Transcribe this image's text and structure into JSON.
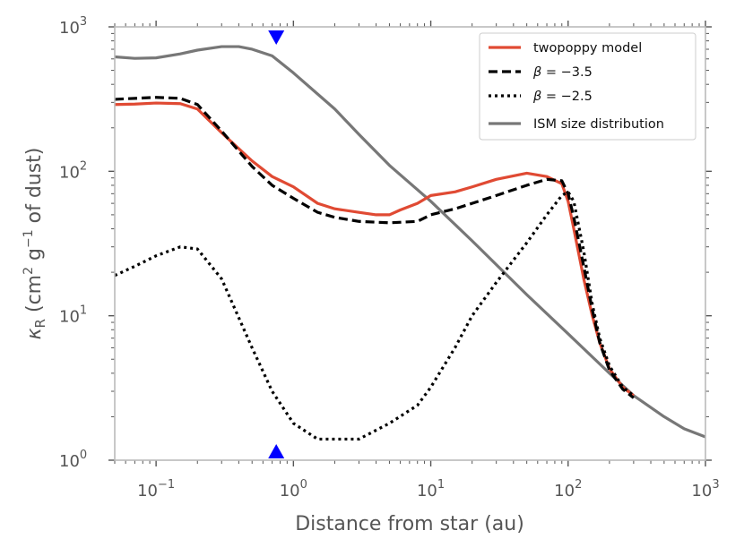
{
  "chart_data": {
    "type": "line",
    "x_scale": "log",
    "y_scale": "log",
    "xlim": [
      0.05,
      1000
    ],
    "ylim": [
      1,
      1000
    ],
    "xlabel": "Distance from star (au)",
    "ylabel": "κR (cm² g⁻¹ of dust)",
    "ylabel_parts": {
      "symbol": "κ",
      "sub": "R",
      "open": " (cm",
      "sup1": "2",
      "mid": " g",
      "sup2": "−1",
      "close": " of dust)"
    },
    "x_ticks": [
      {
        "value": 0.1,
        "base": "10",
        "exp": "−1"
      },
      {
        "value": 1,
        "base": "10",
        "exp": "0"
      },
      {
        "value": 10,
        "base": "10",
        "exp": "1"
      },
      {
        "value": 100,
        "base": "10",
        "exp": "2"
      },
      {
        "value": 1000,
        "base": "10",
        "exp": "3"
      }
    ],
    "y_ticks": [
      {
        "value": 1,
        "base": "10",
        "exp": "0"
      },
      {
        "value": 10,
        "base": "10",
        "exp": "1"
      },
      {
        "value": 100,
        "base": "10",
        "exp": "2"
      },
      {
        "value": 1000,
        "base": "10",
        "exp": "3"
      }
    ],
    "markers": [
      {
        "name": "marker-top",
        "x": 0.75,
        "position": "top",
        "shape": "triangle-down",
        "color": "#0000ff"
      },
      {
        "name": "marker-bottom",
        "x": 0.75,
        "position": "bottom",
        "shape": "triangle-up",
        "color": "#0000ff"
      }
    ],
    "legend_position": "top-right",
    "series": [
      {
        "name": "twopoppy model",
        "label": "twopoppy model",
        "color": "#e04a33",
        "dash": "solid",
        "points": [
          [
            0.05,
            290
          ],
          [
            0.07,
            292
          ],
          [
            0.1,
            297
          ],
          [
            0.15,
            294
          ],
          [
            0.2,
            270
          ],
          [
            0.3,
            185
          ],
          [
            0.5,
            118
          ],
          [
            0.7,
            92
          ],
          [
            1,
            78
          ],
          [
            1.5,
            60
          ],
          [
            2,
            55
          ],
          [
            3,
            52
          ],
          [
            4,
            50
          ],
          [
            5,
            50
          ],
          [
            6,
            54
          ],
          [
            8,
            60
          ],
          [
            10,
            68
          ],
          [
            15,
            72
          ],
          [
            20,
            78
          ],
          [
            30,
            88
          ],
          [
            50,
            97
          ],
          [
            70,
            92
          ],
          [
            90,
            82
          ],
          [
            100,
            62
          ],
          [
            110,
            40
          ],
          [
            130,
            18
          ],
          [
            150,
            10
          ],
          [
            170,
            6.5
          ],
          [
            200,
            4.3
          ],
          [
            250,
            3.2
          ],
          [
            300,
            2.8
          ]
        ]
      },
      {
        "name": "beta-minus-3.5",
        "label": "β = −3.5",
        "label_parts": {
          "symbol": "β",
          "rest": " = −3.5"
        },
        "color": "#000000",
        "dash": "dashed",
        "points": [
          [
            0.05,
            315
          ],
          [
            0.07,
            320
          ],
          [
            0.1,
            325
          ],
          [
            0.15,
            320
          ],
          [
            0.2,
            290
          ],
          [
            0.3,
            190
          ],
          [
            0.5,
            108
          ],
          [
            0.7,
            80
          ],
          [
            1,
            65
          ],
          [
            1.5,
            52
          ],
          [
            2,
            48
          ],
          [
            3,
            45
          ],
          [
            5,
            44
          ],
          [
            8,
            45
          ],
          [
            10,
            50
          ],
          [
            15,
            55
          ],
          [
            20,
            60
          ],
          [
            30,
            68
          ],
          [
            50,
            80
          ],
          [
            70,
            88
          ],
          [
            90,
            86
          ],
          [
            100,
            70
          ],
          [
            110,
            48
          ],
          [
            130,
            22
          ],
          [
            150,
            11
          ],
          [
            170,
            6.5
          ],
          [
            200,
            4.2
          ],
          [
            250,
            3.1
          ],
          [
            300,
            2.7
          ]
        ]
      },
      {
        "name": "beta-minus-2.5",
        "label": "β = −2.5",
        "label_parts": {
          "symbol": "β",
          "rest": " = −2.5"
        },
        "color": "#000000",
        "dash": "dotted",
        "points": [
          [
            0.05,
            19
          ],
          [
            0.07,
            22
          ],
          [
            0.1,
            26
          ],
          [
            0.15,
            30
          ],
          [
            0.2,
            29
          ],
          [
            0.3,
            18
          ],
          [
            0.5,
            6
          ],
          [
            0.7,
            3
          ],
          [
            1,
            1.8
          ],
          [
            1.5,
            1.4
          ],
          [
            2,
            1.4
          ],
          [
            3,
            1.4
          ],
          [
            5,
            1.8
          ],
          [
            8,
            2.4
          ],
          [
            10,
            3.2
          ],
          [
            15,
            6
          ],
          [
            20,
            10
          ],
          [
            30,
            17
          ],
          [
            50,
            32
          ],
          [
            70,
            50
          ],
          [
            90,
            68
          ],
          [
            100,
            72
          ],
          [
            110,
            62
          ],
          [
            130,
            28
          ],
          [
            150,
            12
          ],
          [
            170,
            7
          ],
          [
            200,
            4.5
          ],
          [
            250,
            3.2
          ],
          [
            300,
            2.8
          ]
        ]
      },
      {
        "name": "ism-size-distribution",
        "label": "ISM size distribution",
        "color": "#777777",
        "dash": "solid",
        "points": [
          [
            0.05,
            620
          ],
          [
            0.07,
            605
          ],
          [
            0.1,
            610
          ],
          [
            0.15,
            650
          ],
          [
            0.2,
            690
          ],
          [
            0.3,
            730
          ],
          [
            0.4,
            730
          ],
          [
            0.5,
            700
          ],
          [
            0.7,
            630
          ],
          [
            1,
            480
          ],
          [
            2,
            270
          ],
          [
            3,
            180
          ],
          [
            5,
            110
          ],
          [
            10,
            62
          ],
          [
            20,
            33
          ],
          [
            50,
            14
          ],
          [
            100,
            7.5
          ],
          [
            200,
            4
          ],
          [
            300,
            2.8
          ],
          [
            500,
            2
          ],
          [
            700,
            1.65
          ],
          [
            1000,
            1.45
          ]
        ]
      }
    ]
  }
}
